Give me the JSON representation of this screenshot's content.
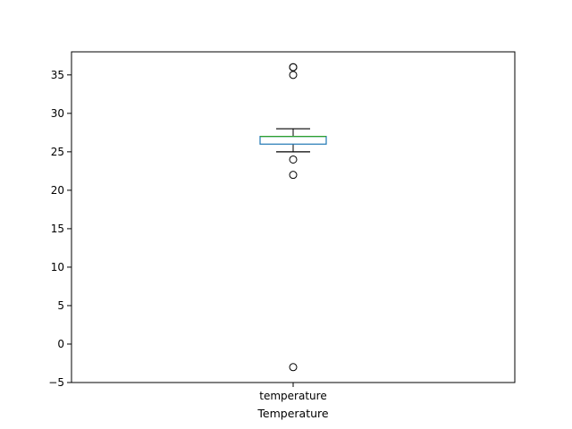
{
  "chart_data": {
    "type": "box",
    "categories": [
      "temperature"
    ],
    "xlabel": "Temperature",
    "ylabel": "",
    "ylim": [
      -5,
      38
    ],
    "yticks": [
      -5,
      0,
      5,
      10,
      15,
      20,
      25,
      30,
      35
    ],
    "grid": false,
    "series": [
      {
        "name": "temperature",
        "whisker_low": 25,
        "q1": 26,
        "median": 27,
        "q3": 27,
        "whisker_high": 28,
        "outliers": [
          36,
          36,
          35,
          24,
          22,
          -3
        ]
      }
    ],
    "colors": {
      "box": "#1f77b4",
      "median": "#2ca02c",
      "whisker": "#000000",
      "outlier": "#000000"
    }
  }
}
